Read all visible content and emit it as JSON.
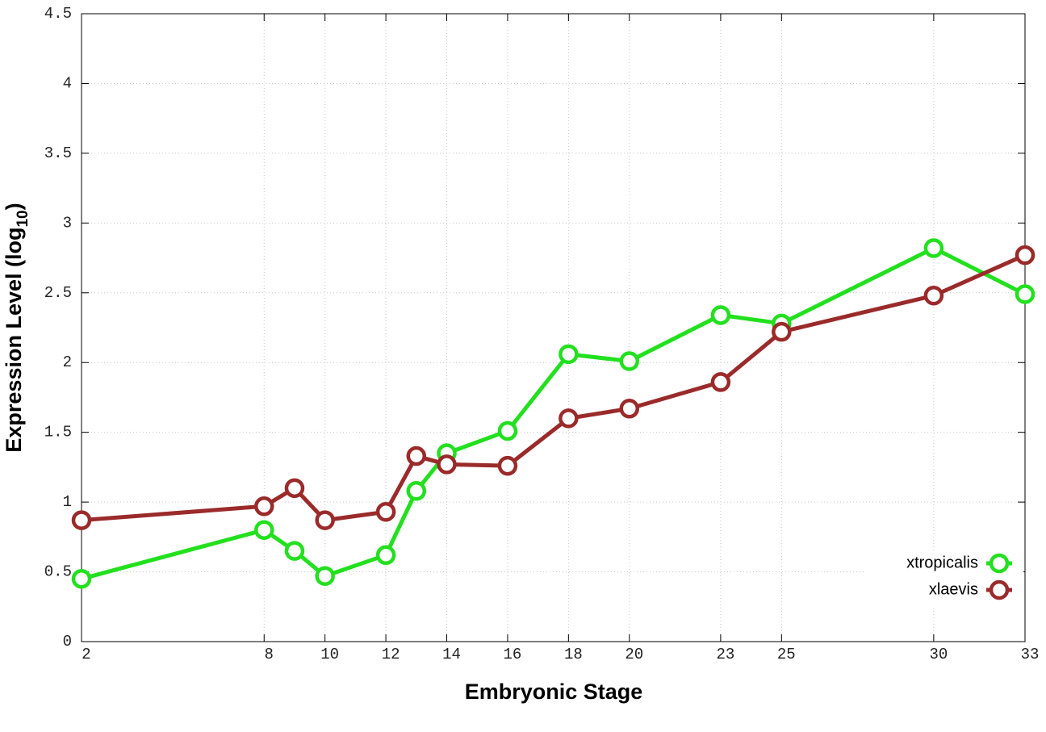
{
  "chart_data": {
    "type": "line",
    "xlabel": "Embryonic Stage",
    "ylabel": [
      "Expression Level (log",
      "10",
      ")"
    ],
    "x": [
      2,
      8,
      9,
      10,
      12,
      13,
      14,
      16,
      18,
      20,
      23,
      25,
      30,
      33
    ],
    "series": [
      {
        "name": "xtropicalis",
        "color": "#22e01e",
        "values": [
          0.45,
          0.8,
          0.65,
          0.47,
          0.62,
          1.08,
          1.35,
          1.51,
          2.06,
          2.01,
          2.34,
          2.28,
          2.82,
          2.49
        ]
      },
      {
        "name": "xlaevis",
        "color": "#9b2a2a",
        "values": [
          0.87,
          0.97,
          1.1,
          0.87,
          0.93,
          1.33,
          1.27,
          1.26,
          1.6,
          1.67,
          1.86,
          2.22,
          2.48,
          2.77
        ]
      }
    ],
    "xlim": [
      2,
      33
    ],
    "xticks": [
      2,
      8,
      10,
      12,
      14,
      16,
      18,
      20,
      23,
      25,
      30,
      33
    ],
    "ylim": [
      0,
      4.5
    ],
    "yticks": [
      0,
      0.5,
      1,
      1.5,
      2,
      2.5,
      3,
      3.5,
      4,
      4.5
    ],
    "grid": true,
    "legend": "lower right"
  }
}
